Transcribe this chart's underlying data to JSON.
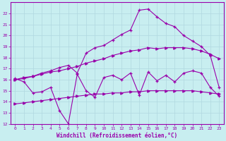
{
  "xlabel": "Windchill (Refroidissement éolien,°C)",
  "background_color": "#c8eef0",
  "grid_color": "#b0d8e0",
  "line_color": "#9900aa",
  "xlim": [
    -0.5,
    23.5
  ],
  "ylim": [
    12,
    23
  ],
  "yticks": [
    12,
    13,
    14,
    15,
    16,
    17,
    18,
    19,
    20,
    21,
    22
  ],
  "xticks": [
    0,
    1,
    2,
    3,
    4,
    5,
    6,
    7,
    8,
    9,
    10,
    11,
    12,
    13,
    14,
    15,
    16,
    17,
    18,
    19,
    20,
    21,
    22,
    23
  ],
  "line1_x": [
    0,
    1,
    2,
    3,
    4,
    5,
    6,
    7,
    8,
    9,
    10,
    11,
    12,
    13,
    14,
    15,
    16,
    17,
    18,
    19,
    20,
    21,
    22,
    23
  ],
  "line1_y": [
    16.1,
    15.8,
    14.8,
    14.9,
    15.3,
    13.2,
    12.0,
    16.5,
    15.0,
    14.4,
    16.2,
    16.4,
    16.0,
    16.6,
    14.6,
    16.7,
    15.9,
    16.4,
    15.8,
    16.6,
    16.8,
    16.6,
    15.3,
    14.5
  ],
  "line2_x": [
    0,
    1,
    2,
    3,
    4,
    5,
    6,
    7,
    8,
    9,
    10,
    11,
    12,
    13,
    14,
    15,
    16,
    17,
    18,
    19,
    20,
    21,
    22,
    23
  ],
  "line2_y": [
    13.8,
    13.9,
    14.0,
    14.1,
    14.2,
    14.3,
    14.4,
    14.5,
    14.6,
    14.7,
    14.7,
    14.8,
    14.8,
    14.9,
    14.9,
    15.0,
    15.0,
    15.0,
    15.0,
    15.0,
    15.0,
    14.9,
    14.8,
    14.7
  ],
  "line3_x": [
    0,
    1,
    2,
    3,
    4,
    5,
    6,
    7,
    8,
    9,
    10,
    11,
    12,
    13,
    14,
    15,
    16,
    17,
    18,
    19,
    20,
    21,
    22,
    23
  ],
  "line3_y": [
    16.0,
    16.2,
    16.3,
    16.5,
    16.7,
    16.8,
    17.0,
    17.2,
    17.5,
    17.7,
    17.9,
    18.2,
    18.4,
    18.6,
    18.7,
    18.9,
    18.8,
    18.9,
    18.9,
    18.9,
    18.8,
    18.6,
    18.3,
    17.9
  ],
  "line4_x": [
    0,
    1,
    2,
    3,
    4,
    5,
    6,
    7,
    8,
    9,
    10,
    11,
    12,
    13,
    14,
    15,
    16,
    17,
    18,
    19,
    20,
    21,
    22,
    23
  ],
  "line4_y": [
    16.0,
    16.1,
    16.3,
    16.6,
    16.8,
    17.1,
    17.3,
    16.6,
    18.4,
    18.9,
    19.1,
    19.6,
    20.1,
    20.5,
    22.3,
    22.4,
    21.7,
    21.1,
    20.8,
    20.0,
    19.5,
    19.0,
    18.2,
    15.3
  ]
}
